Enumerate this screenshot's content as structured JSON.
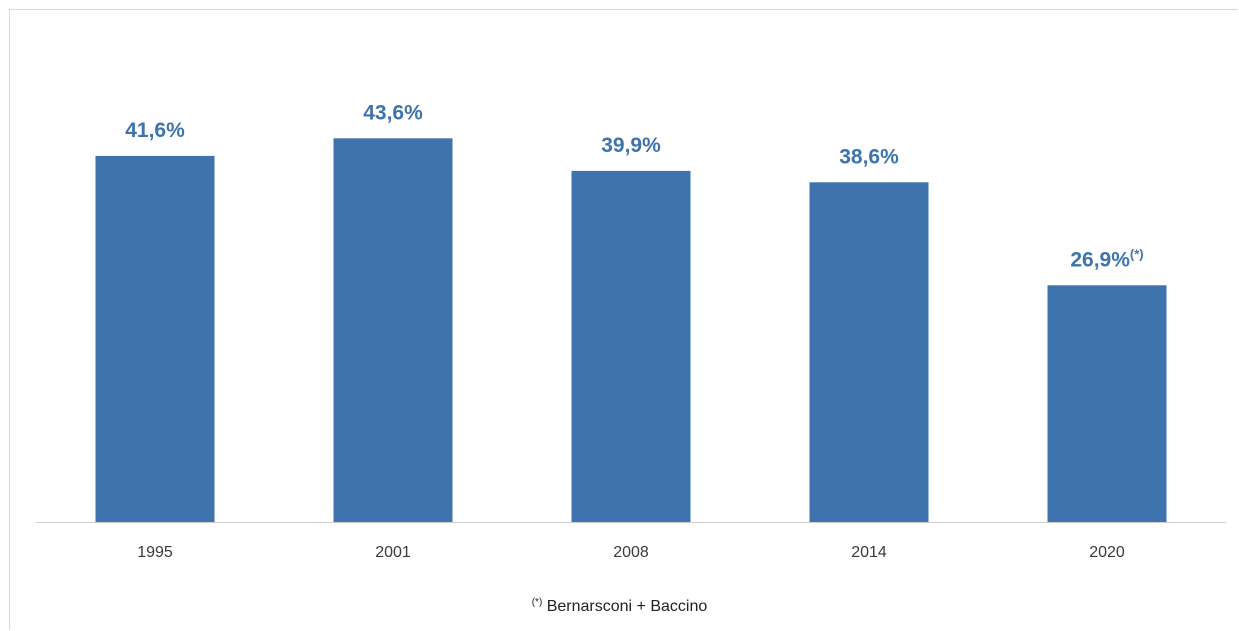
{
  "chart_data": {
    "type": "bar",
    "categories": [
      "1995",
      "2001",
      "2008",
      "2014",
      "2020"
    ],
    "values": [
      41.6,
      43.6,
      39.9,
      38.6,
      26.9
    ],
    "data_labels": [
      "41,6%",
      "43,6%",
      "39,9%",
      "38,6%",
      "26,9%"
    ],
    "data_label_notes": [
      "",
      "",
      "",
      "",
      "(*)"
    ],
    "title": "",
    "xlabel": "",
    "ylabel": "",
    "ylim": [
      0,
      47
    ],
    "grid": false,
    "legend": "none",
    "bar_color": "#3e73ae",
    "label_color": "#3e73ae"
  },
  "footnote": {
    "mark": "(*)",
    "text": " Bernarsconi + Baccino"
  }
}
